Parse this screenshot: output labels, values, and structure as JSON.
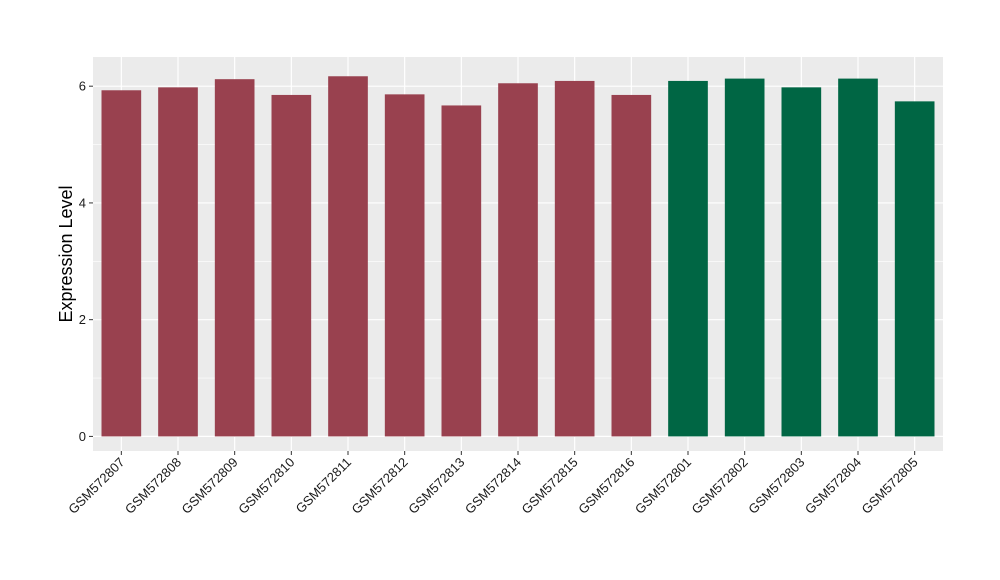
{
  "chart_data": {
    "type": "bar",
    "title": "",
    "xlabel": "",
    "ylabel": "Expression Level",
    "ylim": [
      -0.25,
      6.5
    ],
    "yticks": [
      0,
      2,
      4,
      6
    ],
    "grid": true,
    "categories": [
      "GSM572807",
      "GSM572808",
      "GSM572809",
      "GSM572810",
      "GSM572811",
      "GSM572812",
      "GSM572813",
      "GSM572814",
      "GSM572815",
      "GSM572816",
      "GSM572801",
      "GSM572802",
      "GSM572803",
      "GSM572804",
      "GSM572805"
    ],
    "values": [
      5.93,
      5.98,
      6.12,
      5.85,
      6.17,
      5.86,
      5.67,
      6.05,
      6.09,
      5.85,
      6.09,
      6.13,
      5.98,
      6.13,
      5.74
    ],
    "bar_colors": [
      "#99414f",
      "#99414f",
      "#99414f",
      "#99414f",
      "#99414f",
      "#99414f",
      "#99414f",
      "#99414f",
      "#99414f",
      "#99414f",
      "#006644",
      "#006644",
      "#006644",
      "#006644",
      "#006644"
    ],
    "panel_background": "#ebebeb",
    "gridline_color": "#ffffff"
  }
}
